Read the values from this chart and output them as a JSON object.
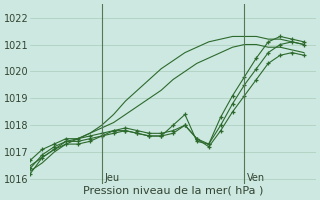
{
  "title": "",
  "xlabel": "Pression niveau de la mer( hPa )",
  "ylabel": "",
  "bg_color": "#cce8e0",
  "grid_color": "#aaccbb",
  "line_color": "#2d6a2d",
  "marker_color": "#2d6a2d",
  "ylim": [
    1015.8,
    1022.5
  ],
  "xlim": [
    0,
    24
  ],
  "day_labels": [
    "Jeu",
    "Ven"
  ],
  "day_positions": [
    6,
    18
  ],
  "yticks": [
    1016,
    1017,
    1018,
    1019,
    1020,
    1021,
    1022
  ],
  "series_straight": [
    [
      1016.3,
      1016.6,
      1017.0,
      1017.3,
      1017.5,
      1017.7,
      1018.0,
      1018.4,
      1018.9,
      1019.3,
      1019.7,
      1020.1,
      1020.4,
      1020.7,
      1020.9,
      1021.1,
      1021.2,
      1021.3,
      1021.3,
      1021.3,
      1021.2,
      1021.2,
      1021.1,
      1021.0
    ],
    [
      1016.5,
      1016.8,
      1017.1,
      1017.4,
      1017.5,
      1017.7,
      1017.9,
      1018.1,
      1018.4,
      1018.7,
      1019.0,
      1019.3,
      1019.7,
      1020.0,
      1020.3,
      1020.5,
      1020.7,
      1020.9,
      1021.0,
      1021.0,
      1020.9,
      1020.9,
      1020.8,
      1020.7
    ]
  ],
  "series_marked": [
    [
      1016.2,
      1016.8,
      1017.1,
      1017.3,
      1017.3,
      1017.4,
      1017.6,
      1017.8,
      1017.8,
      1017.7,
      1017.6,
      1017.6,
      1018.0,
      1018.4,
      1017.4,
      1017.3,
      1018.3,
      1019.1,
      1019.8,
      1020.5,
      1021.1,
      1021.3,
      1021.2,
      1021.1
    ],
    [
      1016.4,
      1016.9,
      1017.2,
      1017.4,
      1017.4,
      1017.5,
      1017.6,
      1017.7,
      1017.8,
      1017.7,
      1017.6,
      1017.6,
      1017.7,
      1018.0,
      1017.5,
      1017.2,
      1017.8,
      1018.5,
      1019.1,
      1019.7,
      1020.3,
      1020.6,
      1020.7,
      1020.6
    ],
    [
      1016.7,
      1017.1,
      1017.3,
      1017.5,
      1017.5,
      1017.6,
      1017.7,
      1017.8,
      1017.9,
      1017.8,
      1017.7,
      1017.7,
      1017.8,
      1018.0,
      1017.5,
      1017.3,
      1018.0,
      1018.8,
      1019.5,
      1020.1,
      1020.7,
      1021.0,
      1021.1,
      1021.0
    ]
  ],
  "fontsize_label": 8,
  "fontsize_tick": 7
}
